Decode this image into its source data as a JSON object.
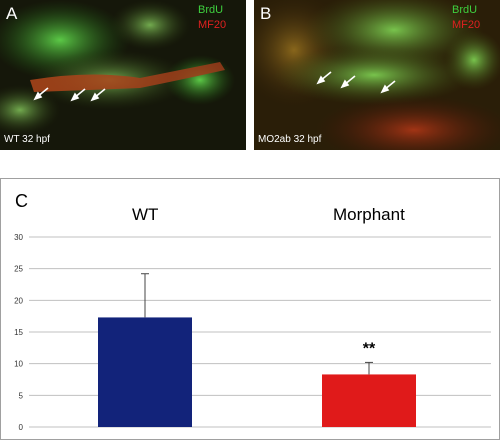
{
  "panels": [
    {
      "letter": "A",
      "stain1": "BrdU",
      "stain2": "MF20",
      "caption": "WT 32 hpf",
      "arrow_count": 3
    },
    {
      "letter": "B",
      "stain1": "BrdU",
      "stain2": "MF20",
      "caption": "MO2ab 32 hpf",
      "arrow_count": 3
    }
  ],
  "chart_panel_label": "C",
  "colors": {
    "wt_bar": "#12237a",
    "morphant_bar": "#e01a1a",
    "grid": "#c0c0c0",
    "green_stain": "#3ecf3e",
    "red_stain": "#e02020"
  },
  "chart_data": {
    "type": "bar",
    "categories": [
      "WT",
      "Morphant"
    ],
    "values": [
      17.3,
      8.3
    ],
    "errors": [
      6.9,
      1.9
    ],
    "significance": [
      "",
      "**"
    ],
    "yticks": [
      "0",
      "5",
      "10",
      "15",
      "20",
      "25",
      "30"
    ],
    "ylim": [
      0,
      30
    ],
    "grid": true,
    "title": "",
    "xlabel": "",
    "ylabel": ""
  }
}
